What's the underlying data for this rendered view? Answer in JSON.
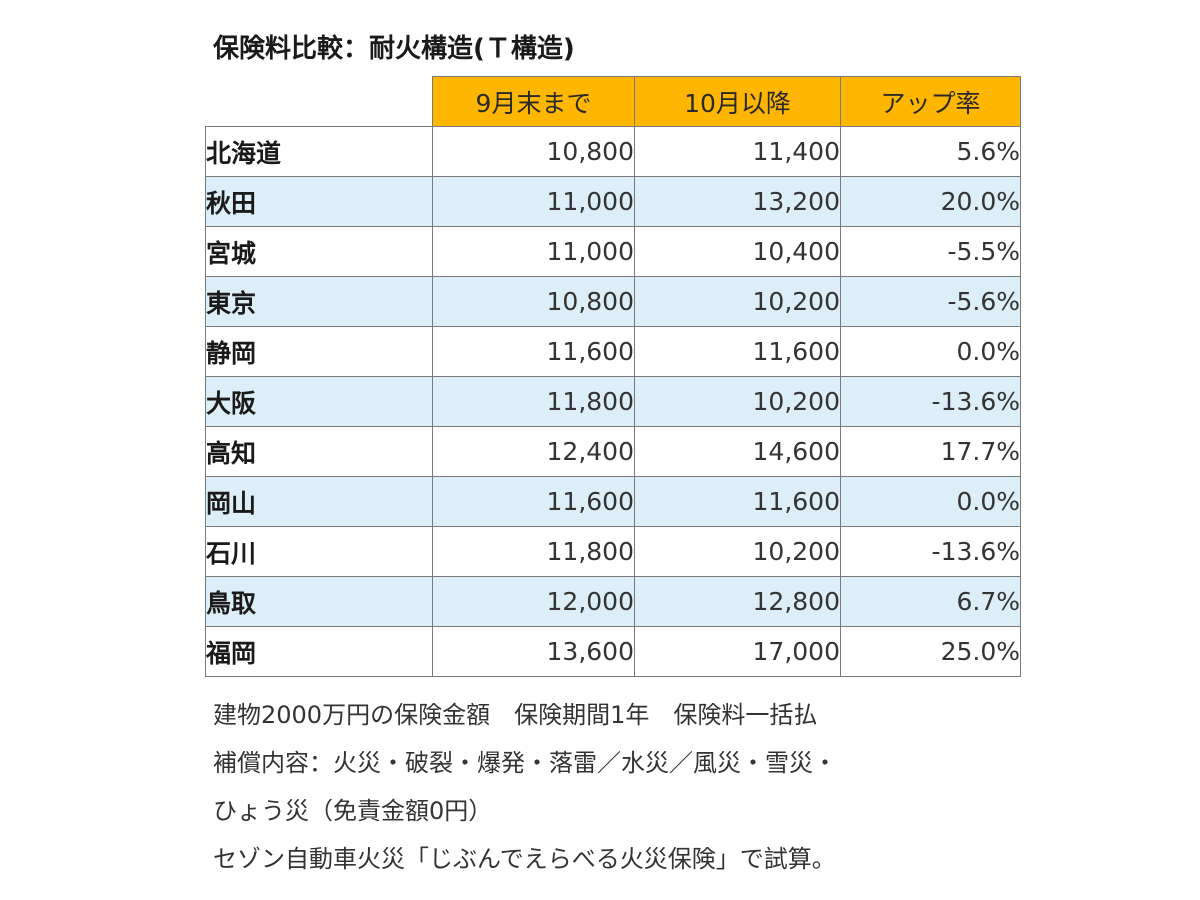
{
  "title": "保険料比較：耐火構造(Ｔ構造)",
  "table": {
    "headers": [
      "9月末まで",
      "10月以降",
      "アップ率"
    ],
    "rows": [
      {
        "region": "北海道",
        "before": "10,800",
        "after": "11,400",
        "rate": "5.6%"
      },
      {
        "region": "秋田",
        "before": "11,000",
        "after": "13,200",
        "rate": "20.0%"
      },
      {
        "region": "宮城",
        "before": "11,000",
        "after": "10,400",
        "rate": "-5.5%"
      },
      {
        "region": "東京",
        "before": "10,800",
        "after": "10,200",
        "rate": "-5.6%"
      },
      {
        "region": "静岡",
        "before": "11,600",
        "after": "11,600",
        "rate": "0.0%"
      },
      {
        "region": "大阪",
        "before": "11,800",
        "after": "10,200",
        "rate": "-13.6%"
      },
      {
        "region": "高知",
        "before": "12,400",
        "after": "14,600",
        "rate": "17.7%"
      },
      {
        "region": "岡山",
        "before": "11,600",
        "after": "11,600",
        "rate": "0.0%"
      },
      {
        "region": "石川",
        "before": "11,800",
        "after": "10,200",
        "rate": "-13.6%"
      },
      {
        "region": "鳥取",
        "before": "12,000",
        "after": "12,800",
        "rate": "6.7%"
      },
      {
        "region": "福岡",
        "before": "13,600",
        "after": "17,000",
        "rate": "25.0%"
      }
    ]
  },
  "notes": [
    "建物2000万円の保険金額　保険期間1年　保険料一括払",
    "補償内容：火災・破裂・爆発・落雷／水災／風災・雪災・",
    "ひょう災（免責金額0円）",
    "セゾン自動車火災「じぶんでえらべる火災保険」で試算。"
  ],
  "colors": {
    "header_bg": "#ffb600",
    "row_shade": "#dceef7",
    "border": "#7a7a7a"
  }
}
